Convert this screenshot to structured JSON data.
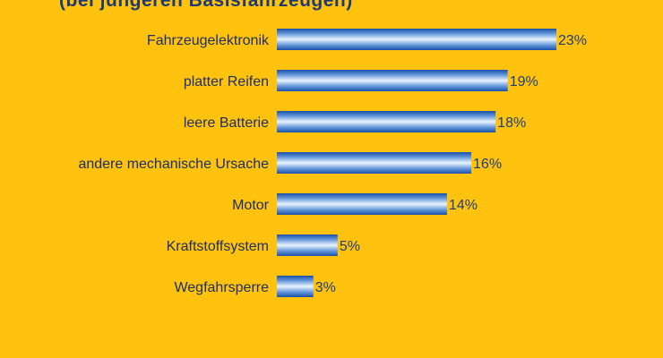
{
  "chart_data": {
    "type": "bar",
    "orientation": "horizontal",
    "subtitle": "(bei jüngeren Basisfahrzeugen)",
    "categories": [
      "Fahrzeugelektronik",
      "platter Reifen",
      "leere Batterie",
      "andere mechanische Ursache",
      "Motor",
      "Kraftstoffsystem",
      "Wegfahrsperre"
    ],
    "values": [
      23,
      19,
      18,
      16,
      14,
      5,
      3
    ],
    "value_labels": [
      "23%",
      "19%",
      "18%",
      "16%",
      "14%",
      "5%",
      "3%"
    ],
    "unit": "%",
    "xlim": [
      0,
      23
    ],
    "grid": false,
    "legend": "none"
  },
  "colors": {
    "background": "#FFC20E",
    "bar_dark": "#1F57B0",
    "bar_light": "#E8F2FF",
    "label_text": "#1E2F66",
    "value_text": "#1E3E7A"
  }
}
